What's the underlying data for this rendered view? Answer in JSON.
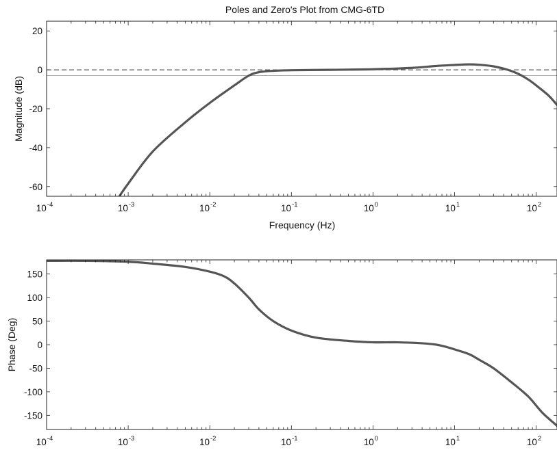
{
  "chart_data": {
    "title": "Poles and Zero's Plot from CMG-6TD",
    "panels": [
      {
        "name": "magnitude",
        "type": "line",
        "xlabel": "Frequency (Hz)",
        "ylabel": "Magnitude (dB)",
        "xscale": "log",
        "xlim": [
          0.0001,
          180
        ],
        "ylim": [
          -65,
          25
        ],
        "xtick_exponents": [
          "-4",
          "-3",
          "-2",
          "-1",
          "0",
          "1",
          "2"
        ],
        "yticks": [
          20,
          0,
          -20,
          -40,
          -60
        ],
        "reference_lines": [
          {
            "style": "dashed",
            "y": 0
          },
          {
            "style": "solid-thin",
            "y": -3
          }
        ],
        "series": [
          {
            "color": "#555555",
            "points": [
              [
                0.00078,
                -65
              ],
              [
                0.001,
                -58.5
              ],
              [
                0.002,
                -42
              ],
              [
                0.005,
                -27
              ],
              [
                0.01,
                -17
              ],
              [
                0.02,
                -8
              ],
              [
                0.03,
                -3
              ],
              [
                0.04,
                -1.2
              ],
              [
                0.06,
                -0.5
              ],
              [
                0.1,
                -0.2
              ],
              [
                0.3,
                0
              ],
              [
                1,
                0.3
              ],
              [
                3,
                1.0
              ],
              [
                6,
                2.0
              ],
              [
                10,
                2.5
              ],
              [
                15,
                2.8
              ],
              [
                20,
                2.6
              ],
              [
                30,
                1.8
              ],
              [
                45,
                0
              ],
              [
                60,
                -2
              ],
              [
                80,
                -5
              ],
              [
                100,
                -8
              ],
              [
                140,
                -13
              ],
              [
                180,
                -18
              ]
            ]
          }
        ]
      },
      {
        "name": "phase",
        "type": "line",
        "ylabel": "Phase (Deg)",
        "xscale": "log",
        "xlim": [
          0.0001,
          180
        ],
        "ylim": [
          -180,
          180
        ],
        "xtick_exponents": [
          "-4",
          "-3",
          "-2",
          "-1",
          "0",
          "1",
          "2"
        ],
        "yticks": [
          150,
          100,
          50,
          0,
          -50,
          -100,
          -150
        ],
        "series": [
          {
            "color": "#555555",
            "points": [
              [
                0.0001,
                178
              ],
              [
                0.0003,
                178
              ],
              [
                0.001,
                176
              ],
              [
                0.002,
                172
              ],
              [
                0.005,
                165
              ],
              [
                0.01,
                155
              ],
              [
                0.015,
                145
              ],
              [
                0.02,
                130
              ],
              [
                0.03,
                100
              ],
              [
                0.04,
                75
              ],
              [
                0.06,
                50
              ],
              [
                0.1,
                30
              ],
              [
                0.2,
                15
              ],
              [
                0.5,
                8
              ],
              [
                1,
                5
              ],
              [
                2,
                5
              ],
              [
                4,
                3
              ],
              [
                6,
                0
              ],
              [
                8,
                -5
              ],
              [
                10,
                -10
              ],
              [
                15,
                -20
              ],
              [
                20,
                -32
              ],
              [
                30,
                -50
              ],
              [
                50,
                -80
              ],
              [
                80,
                -110
              ],
              [
                120,
                -145
              ],
              [
                180,
                -172
              ]
            ]
          }
        ]
      }
    ]
  }
}
